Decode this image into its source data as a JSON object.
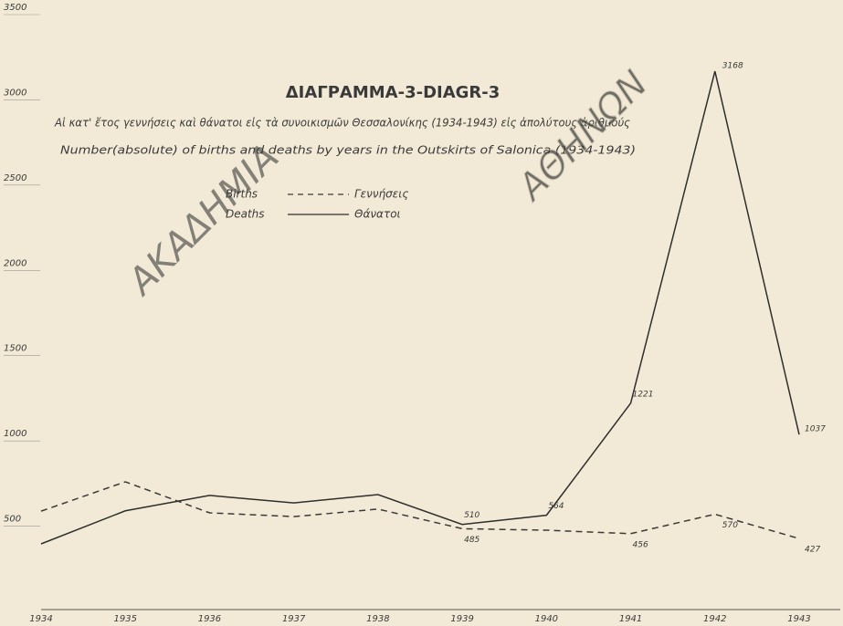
{
  "chart_data": {
    "type": "line",
    "title": "ΔΙΑΓΡΑΜΜΑ-3-DIAGR-3",
    "subtitle": "Αἱ κατ' ἔτος γεννήσεις καὶ θάνατοι εἰς τὰ συνοικισμῶν Θεσσαλονίκης (1934-1943) εἰς ἀπολύτους ἀριθμούς",
    "subtitle_en": "Number(absolute) of births and deaths by years in the Outskirts of Salonica (1934-1943)",
    "watermark": [
      "ΑΚΑΔΗΜΙΑ",
      "ΑΘΗΝΩΝ"
    ],
    "categories": [
      "1934",
      "1935",
      "1936",
      "1937",
      "1938",
      "1939",
      "1940",
      "1941",
      "1942",
      "1943"
    ],
    "series": [
      {
        "name": "Births",
        "name_gr": "Γεννήσεις",
        "color": "#3a3a3a",
        "dash": true,
        "values": [
          588,
          760,
          578,
          556,
          600,
          485,
          476,
          456,
          570,
          427
        ],
        "value_labels": [
          null,
          null,
          null,
          null,
          null,
          "485",
          null,
          "456",
          "570",
          "427"
        ]
      },
      {
        "name": "Deaths",
        "name_gr": "Θάνατοι",
        "color": "#2e2e2e",
        "dash": false,
        "values": [
          396,
          590,
          680,
          636,
          685,
          510,
          564,
          1221,
          3168,
          1037
        ],
        "value_labels": [
          null,
          null,
          null,
          null,
          null,
          "510",
          "564",
          "1221",
          "3168",
          "1037"
        ]
      }
    ],
    "ylim": [
      0,
      3500
    ],
    "yticks": [
      500,
      1000,
      1500,
      2000,
      2500,
      3000,
      3500
    ]
  }
}
